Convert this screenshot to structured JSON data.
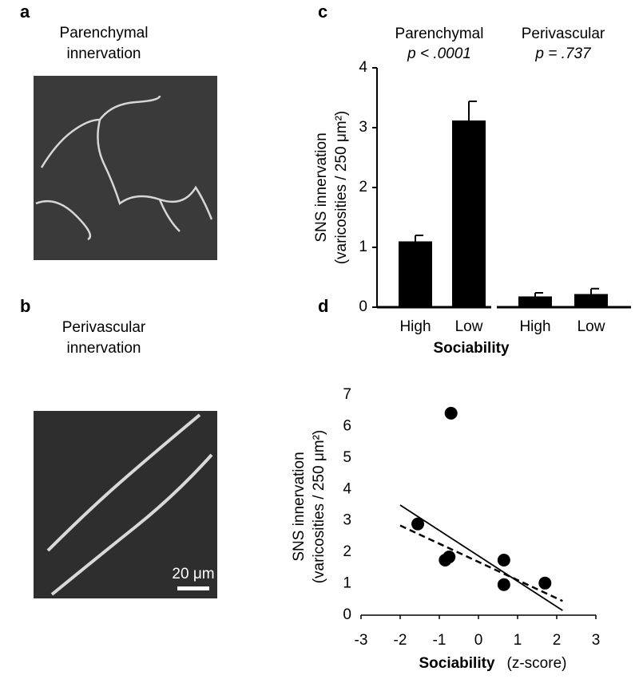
{
  "panels": [
    {
      "letter": "a",
      "title": [
        "Parenchymal",
        "innervation"
      ]
    },
    {
      "letter": "b",
      "title": [
        "Perivascular",
        "innervation"
      ],
      "scale_bar": "20 μm"
    },
    {
      "letter": "c"
    },
    {
      "letter": "d"
    }
  ],
  "chart_data": [
    {
      "type": "bar",
      "color": "#000000",
      "groups": [
        {
          "name": "Parenchymal",
          "annotation": "p < .0001",
          "categories": [
            "High",
            "Low"
          ],
          "values": [
            1.1,
            3.12
          ],
          "errors": [
            0.1,
            0.32
          ]
        },
        {
          "name": "Perivascular",
          "annotation": "p = .737",
          "categories": [
            "High",
            "Low"
          ],
          "values": [
            0.18,
            0.22
          ],
          "errors": [
            0.06,
            0.09
          ]
        }
      ],
      "ylim": [
        0,
        4
      ],
      "yticks": [
        0,
        1,
        2,
        3,
        4
      ],
      "ylabel": [
        "SNS innervation",
        "(varicosities / 250 μm²)"
      ],
      "xlabel": "Sociability"
    },
    {
      "type": "scatter",
      "color": "#000000",
      "x": [
        -1.55,
        -0.7,
        -0.85,
        -0.75,
        0.65,
        0.65,
        1.7
      ],
      "y": [
        2.9,
        6.42,
        1.75,
        1.85,
        1.75,
        0.97,
        1.02
      ],
      "lines": [
        {
          "style": "solid",
          "x": [
            -2,
            2.15
          ],
          "y": [
            3.5,
            0.15
          ]
        },
        {
          "style": "dashed",
          "x": [
            -2,
            2.15
          ],
          "y": [
            2.85,
            0.45
          ]
        }
      ],
      "xlim": [
        -3,
        3
      ],
      "xticks": [
        -3,
        -2,
        -1,
        0,
        1,
        2,
        3
      ],
      "ylim": [
        0,
        7
      ],
      "yticks": [
        0,
        1,
        2,
        3,
        4,
        5,
        6,
        7
      ],
      "ylabel": [
        "SNS innervation",
        "(varicosities / 250 μm²)"
      ],
      "xlabel": [
        "Sociability",
        "(z-score)"
      ]
    }
  ]
}
